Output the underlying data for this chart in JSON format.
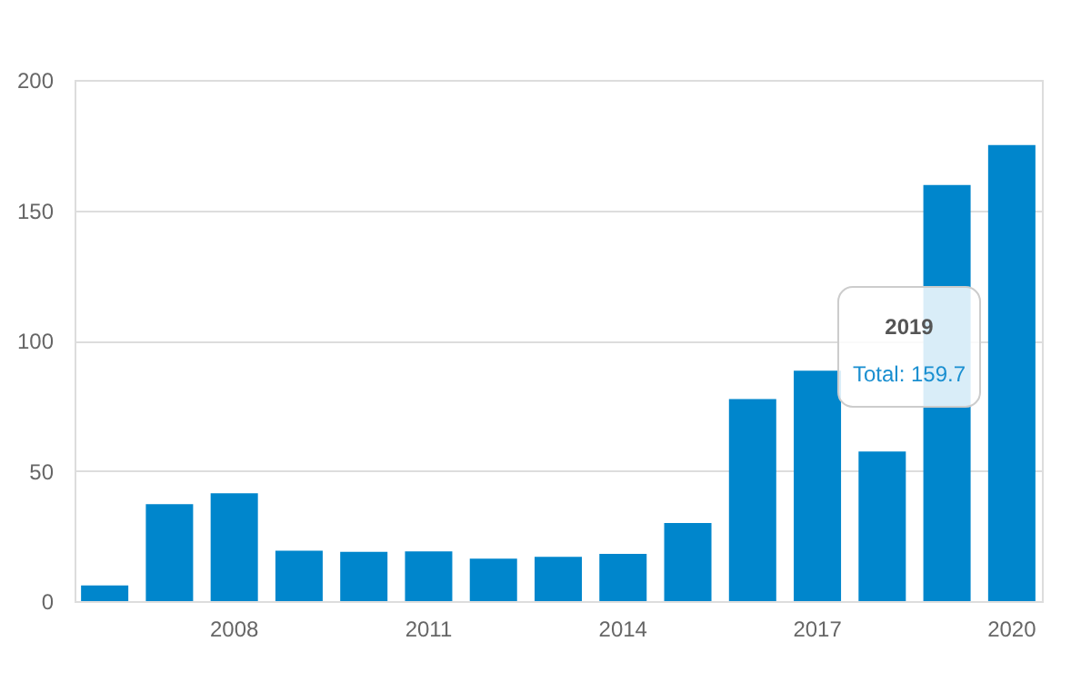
{
  "chart_data": {
    "type": "bar",
    "categories": [
      null,
      null,
      "2008",
      null,
      null,
      "2011",
      null,
      null,
      "2014",
      null,
      null,
      "2017",
      null,
      null,
      "2020"
    ],
    "values": [
      6.0,
      37.2,
      41.4,
      19.3,
      18.9,
      19.1,
      16.3,
      17.0,
      18.1,
      30.0,
      77.5,
      88.4,
      57.4,
      159.7,
      175
    ],
    "color": "#0086cc",
    "ylim": [
      0,
      200
    ],
    "yticks": [
      0,
      50,
      100,
      150,
      200
    ],
    "grid": "y",
    "annotations": [
      "2019",
      "Total: 159.7"
    ]
  }
}
